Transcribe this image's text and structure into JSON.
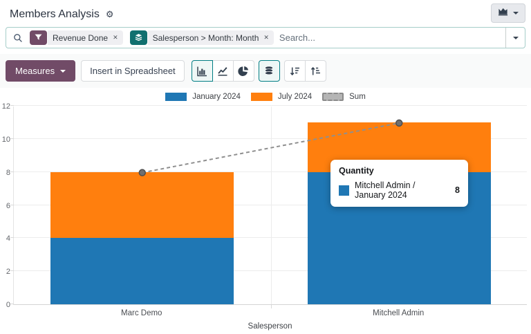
{
  "header": {
    "title": "Members Analysis"
  },
  "view_switcher": {
    "icon": "area-chart-icon"
  },
  "searchbar": {
    "placeholder": "Search...",
    "facets": [
      {
        "icon": "filter-icon",
        "label": "Revenue Done",
        "color": "#714B67",
        "close": "✕"
      },
      {
        "icon": "layers-icon",
        "label": "Salesperson > Month: Month",
        "color": "#11706f",
        "close": "✕"
      }
    ]
  },
  "toolbar": {
    "measures_label": "Measures",
    "insert_label": "Insert in Spreadsheet",
    "chart_buttons": [
      {
        "name": "bar",
        "active": true
      },
      {
        "name": "line",
        "active": false
      },
      {
        "name": "pie",
        "active": false
      },
      {
        "name": "stacked",
        "active": true
      },
      {
        "name": "sort-desc",
        "active": false
      },
      {
        "name": "sort-asc",
        "active": false
      }
    ]
  },
  "chart_data": {
    "type": "bar",
    "stacked": true,
    "title": "",
    "xlabel": "Salesperson",
    "ylabel": "",
    "ylim": [
      0,
      12
    ],
    "ytick_step": 2,
    "grid": true,
    "legend_position": "top",
    "categories": [
      "Marc Demo",
      "Mitchell Admin"
    ],
    "series": [
      {
        "name": "January 2024",
        "values": [
          4,
          8
        ],
        "color": "#1f77b4"
      },
      {
        "name": "July 2024",
        "values": [
          4,
          3
        ],
        "color": "#ff7f0e"
      }
    ],
    "sum_line": {
      "name": "Sum",
      "values": [
        8,
        11
      ],
      "color": "#8f8f8f",
      "point_color": "#6f6f6f"
    }
  },
  "tooltip": {
    "title": "Quantity",
    "label": "Mitchell Admin / January 2024",
    "value": "8",
    "swatch": "#1f77b4"
  },
  "colors": {
    "brand": "#714B67",
    "accent": "#017e84",
    "blue": "#1f77b4",
    "orange": "#ff7f0e"
  }
}
